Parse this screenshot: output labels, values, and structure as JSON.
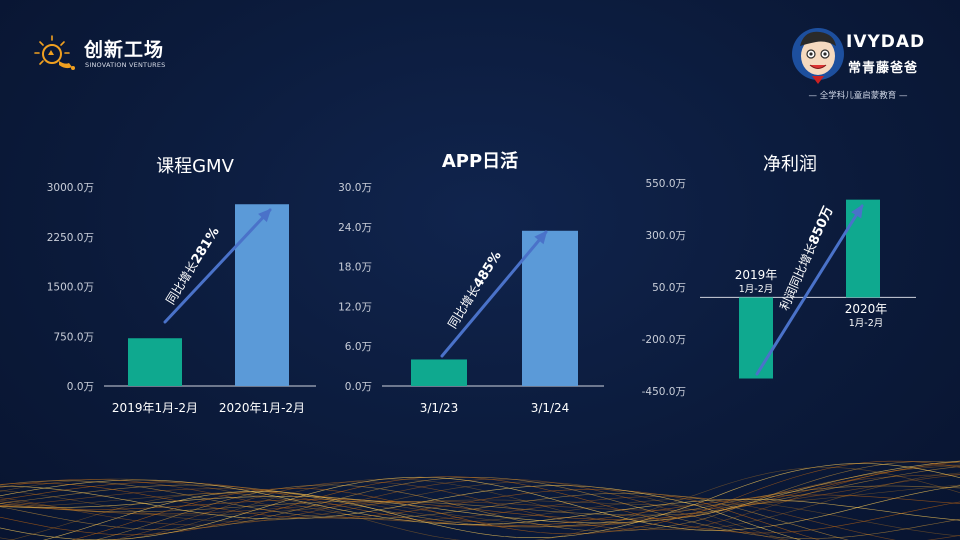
{
  "brand_left": {
    "name": "创新工场",
    "subtitle": "SINOVATION VENTURES"
  },
  "brand_right": {
    "name_en": "IVYDAD",
    "name_cn": "常青藤爸爸",
    "tagline": "— 全学科儿童启蒙教育 —"
  },
  "colors": {
    "background": "#0b1a3a",
    "green": "#0fa98f",
    "blue": "#5b9ad8",
    "arrow": "#4a72c9",
    "axis_text": "#c9ced9"
  },
  "chart_data": [
    {
      "type": "bar",
      "title": "课程GMV",
      "ylim": [
        0,
        3000
      ],
      "ticks": [
        0,
        750,
        1500,
        2250,
        3000
      ],
      "tick_labels": [
        "0.0万",
        "750.0万",
        "1500.0万",
        "2250.0万",
        "3000.0万"
      ],
      "categories": [
        "2019年1月-2月",
        "2020年1月-2月"
      ],
      "values": [
        720,
        2740
      ],
      "bar_colors": [
        "#0fa98f",
        "#5b9ad8"
      ],
      "annotation": {
        "text": "同比增长",
        "highlight": "281%"
      }
    },
    {
      "type": "bar",
      "title": "APP日活",
      "ylim": [
        0,
        30
      ],
      "ticks": [
        0,
        6,
        12,
        18,
        24,
        30
      ],
      "tick_labels": [
        "0.0万",
        "6.0万",
        "12.0万",
        "18.0万",
        "24.0万",
        "30.0万"
      ],
      "categories": [
        "3/1/23",
        "3/1/24"
      ],
      "values": [
        4,
        23.4
      ],
      "bar_colors": [
        "#0fa98f",
        "#5b9ad8"
      ],
      "annotation": {
        "text": "同比增长",
        "highlight": "485%"
      }
    },
    {
      "type": "bar",
      "title": "净利润",
      "ylim": [
        -450,
        550
      ],
      "ticks": [
        -450,
        -200,
        50,
        300,
        550
      ],
      "tick_labels": [
        "-450.0万",
        "-200.0万",
        "50.0万",
        "300.0万",
        "550.0万"
      ],
      "categories": [
        "2019年 1月-2月",
        "2020年 1月-2月"
      ],
      "category_lines": [
        [
          "2019年",
          "1月-2月"
        ],
        [
          "2020年",
          "1月-2月"
        ]
      ],
      "values": [
        -390,
        470
      ],
      "bar_colors": [
        "#0fa98f",
        "#0fa98f"
      ],
      "annotation": {
        "text": "利润同比增长",
        "highlight": "850万"
      }
    }
  ]
}
